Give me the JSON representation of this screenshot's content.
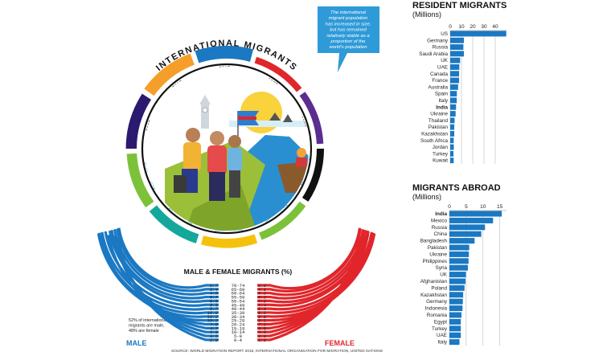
{
  "infographic": {
    "main_title": "INTERNATIONAL MIGRANTS",
    "callout": [
      "The international",
      "migrant population",
      "has increased in size,",
      "but has remained",
      "relatively stable as a",
      "proportion of the",
      "world's population"
    ],
    "male_female_title": "MALE & FEMALE MIGRANTS (%)",
    "male_label": "MALE",
    "female_label": "FEMALE",
    "note": [
      "52% of international",
      "migrants are male,",
      "48% are female"
    ],
    "source": "SOURCE: WORLD MIGRATION REPORT 2018, INTERNATIONAL ORGANISATION FOR MIGRATION, UNITED NATIONS",
    "colors": {
      "blue": "#1b78c2",
      "red": "#e0262b",
      "navy": "#2b1a6e",
      "purple": "#5b2d8e",
      "green": "#7bc23a",
      "teal": "#14a89c",
      "yellow": "#f4c20d",
      "orange": "#f59e2a",
      "black": "#111111",
      "light_blue": "#2e9ad8"
    }
  },
  "chart_data": [
    {
      "type": "pie",
      "title": "INTERNATIONAL MIGRANTS",
      "segments": [
        {
          "year": "1970",
          "count": "84,460,125",
          "value": 84460125,
          "color": "#e0262b"
        },
        {
          "year": "1975",
          "count": "90,368,010",
          "value": 90368010,
          "color": "#5b2d8e"
        },
        {
          "year": "1980",
          "count": "101,983,149",
          "value": 101983149,
          "color": "#111111"
        },
        {
          "year": "1985",
          "count": "113,206,691",
          "value": 113206691,
          "color": "#7bc23a"
        },
        {
          "year": "1990",
          "count": "152,563,212",
          "value": 152563212,
          "color": "#f4c20d"
        },
        {
          "year": "1995",
          "count": "160,801,752",
          "value": 160801752,
          "color": "#14a89c"
        },
        {
          "year": "2000",
          "count": "172,703,309",
          "value": 172703309,
          "color": "#7bc23a"
        },
        {
          "year": "2005",
          "count": "191,615,574",
          "value": 191615574,
          "color": "#2b1a6e"
        },
        {
          "year": "2010",
          "count": "221,714,243",
          "value": 221714243,
          "color": "#f59e2a"
        },
        {
          "year": "2015",
          "count": "243,700,236",
          "value": 243700236,
          "color": "#1b78c2"
        }
      ]
    },
    {
      "type": "bar",
      "orientation": "horizontal",
      "title": "MALE & FEMALE MIGRANTS (%)",
      "categories": [
        "70-74",
        "65-69",
        "60-64",
        "55-59",
        "50-54",
        "45-49",
        "40-44",
        "35-39",
        "30-34",
        "25-29",
        "20-24",
        "15-19",
        "10-14",
        "5-9",
        "0-4"
      ],
      "series": [
        {
          "name": "MALE",
          "values": [
            2.7,
            3.4,
            4.5,
            5.7,
            6.5,
            8.3,
            9.7,
            10.8,
            11.2,
            10.2,
            7.0,
            4.7,
            3.9,
            3.5,
            2.9
          ]
        },
        {
          "name": "FEMALE",
          "values": [
            3.8,
            4.1,
            5.2,
            6.2,
            7.2,
            7.4,
            8.8,
            9.5,
            9.9,
            9.1,
            7.2,
            5.8,
            4.6,
            3.8,
            3.6
          ]
        }
      ]
    },
    {
      "type": "bar",
      "orientation": "horizontal",
      "title": "RESIDENT MIGRANTS",
      "subtitle": "(Millions)",
      "ticks": [
        "0",
        "10",
        "20",
        "30",
        "40"
      ],
      "xlim": [
        0,
        50
      ],
      "categories": [
        "US",
        "Germany",
        "Russia",
        "Saudi Arabia",
        "UK",
        "UAE",
        "Canada",
        "France",
        "Australia",
        "Spain",
        "Italy",
        "India",
        "Ukraine",
        "Thailand",
        "Pakistan",
        "Kazakhstan",
        "South Africa",
        "Jordan",
        "Turkey",
        "Kuwait"
      ],
      "highlight": "India",
      "values": [
        49.8,
        12.2,
        11.7,
        12.2,
        8.8,
        8.1,
        7.9,
        7.9,
        7.0,
        5.9,
        5.8,
        5.2,
        4.8,
        3.9,
        3.6,
        3.6,
        3.1,
        3.2,
        2.9,
        3.1
      ]
    },
    {
      "type": "bar",
      "orientation": "horizontal",
      "title": "MIGRANTS ABROAD",
      "subtitle": "(Millions)",
      "ticks": [
        "0",
        "5",
        "10",
        "15"
      ],
      "xlim": [
        0,
        17
      ],
      "categories": [
        "India",
        "Mexico",
        "Russia",
        "China",
        "Bangladesh",
        "Pakistan",
        "Ukraine",
        "Philippines",
        "Syria",
        "UK",
        "Afghanistan",
        "Poland",
        "Kazakhstan",
        "Germany",
        "Indonesia",
        "Romania",
        "Egypt",
        "Turkey",
        "UAE",
        "Italy"
      ],
      "highlight": "India",
      "values": [
        15.6,
        13.0,
        10.6,
        9.5,
        7.5,
        5.9,
        5.8,
        5.7,
        5.5,
        4.9,
        4.8,
        4.5,
        4.1,
        4.0,
        3.9,
        3.6,
        3.4,
        3.4,
        3.4,
        3.0
      ]
    }
  ]
}
